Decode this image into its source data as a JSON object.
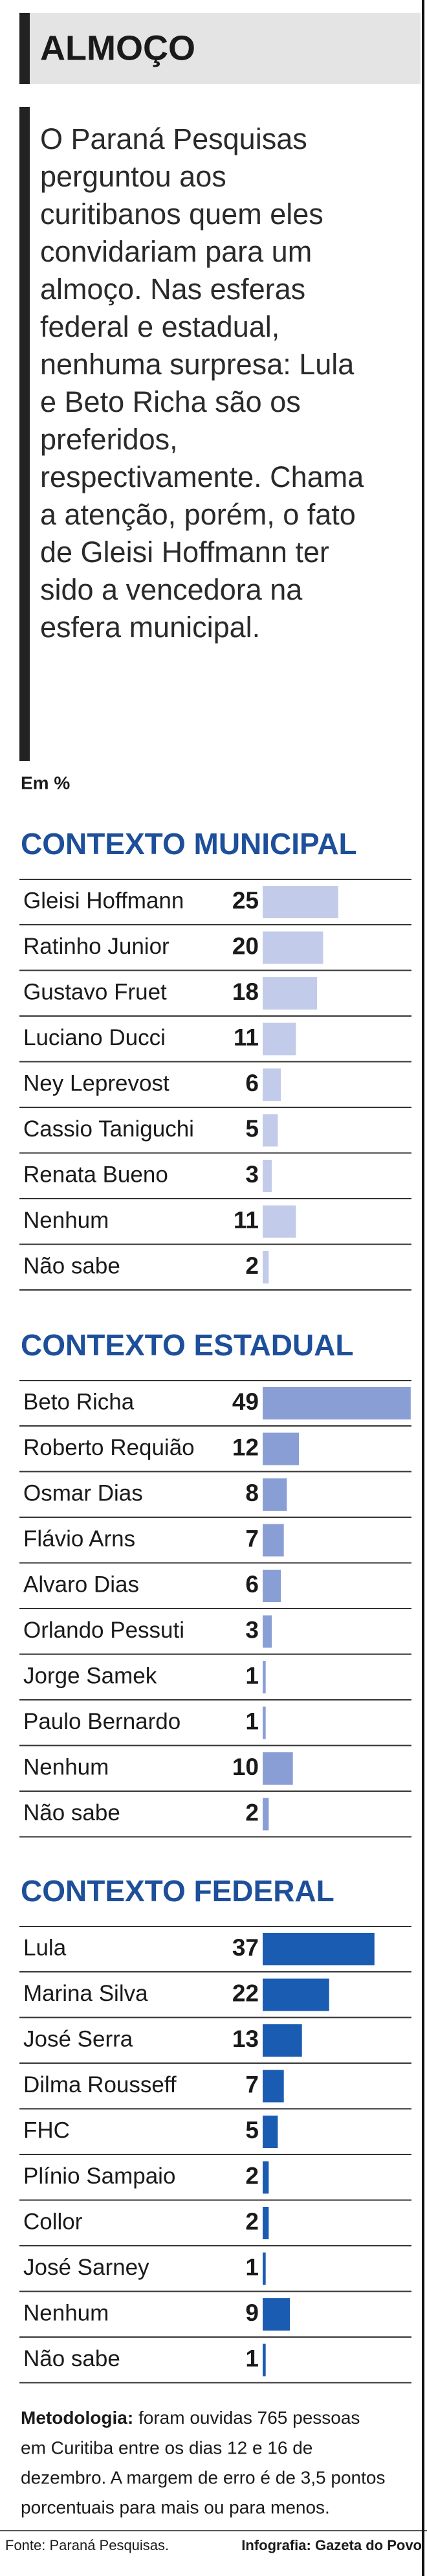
{
  "header": {
    "title": "ALMOÇO",
    "text_lines": [
      "O Paraná Pesquisas",
      "perguntou aos",
      "curitibanos quem eles",
      "convidariam para um",
      "almoço. Nas esferas",
      "federal e estadual,",
      "nenhuma surpresa: Lula",
      "e Beto Richa são os",
      "preferidos,",
      "respectivamente. Chama",
      "a atenção, porém, o fato",
      "de Gleisi Hoffmann ter",
      "sido a vencedora na",
      "esfera municipal."
    ]
  },
  "unit_label": "Em %",
  "chart_data": [
    {
      "type": "bar",
      "title": "CONTEXTO MUNICIPAL",
      "color": "#c3cbea",
      "categories": [
        "Gleisi Hoffmann",
        "Ratinho Junior",
        "Gustavo Fruet",
        "Luciano Ducci",
        "Ney Leprevost",
        "Cassio Taniguchi",
        "Renata Bueno",
        "Nenhum",
        "Não sabe"
      ],
      "values": [
        25,
        20,
        18,
        11,
        6,
        5,
        3,
        11,
        2
      ]
    },
    {
      "type": "bar",
      "title": "CONTEXTO ESTADUAL",
      "color": "#8a9ed6",
      "categories": [
        "Beto Richa",
        "Roberto Requião",
        "Osmar Dias",
        "Flávio Arns",
        "Alvaro Dias",
        "Orlando Pessuti",
        "Jorge Samek",
        "Paulo Bernardo",
        "Nenhum",
        "Não sabe"
      ],
      "values": [
        49,
        12,
        8,
        7,
        6,
        3,
        1,
        1,
        10,
        2
      ]
    },
    {
      "type": "bar",
      "title": "CONTEXTO FEDERAL",
      "color": "#1b5cb3",
      "categories": [
        "Lula",
        "Marina Silva",
        "José Serra",
        "Dilma Rousseff",
        "FHC",
        "Plínio Sampaio",
        "Collor",
        "José Sarney",
        "Nenhum",
        "Não sabe"
      ],
      "values": [
        37,
        22,
        13,
        7,
        5,
        2,
        2,
        1,
        9,
        1
      ]
    }
  ],
  "footer": {
    "methodology_label": "Metodologia:",
    "methodology_lines": [
      "foram ouvidas 765 pessoas",
      "em Curitiba entre os dias 12 e 16 de",
      "dezembro. A margem de erro é de 3,5 pontos",
      "porcentuais para mais ou para menos."
    ],
    "source": "Fonte: Paraná Pesquisas.",
    "credit": "Infografia: Gazeta do Povo"
  }
}
